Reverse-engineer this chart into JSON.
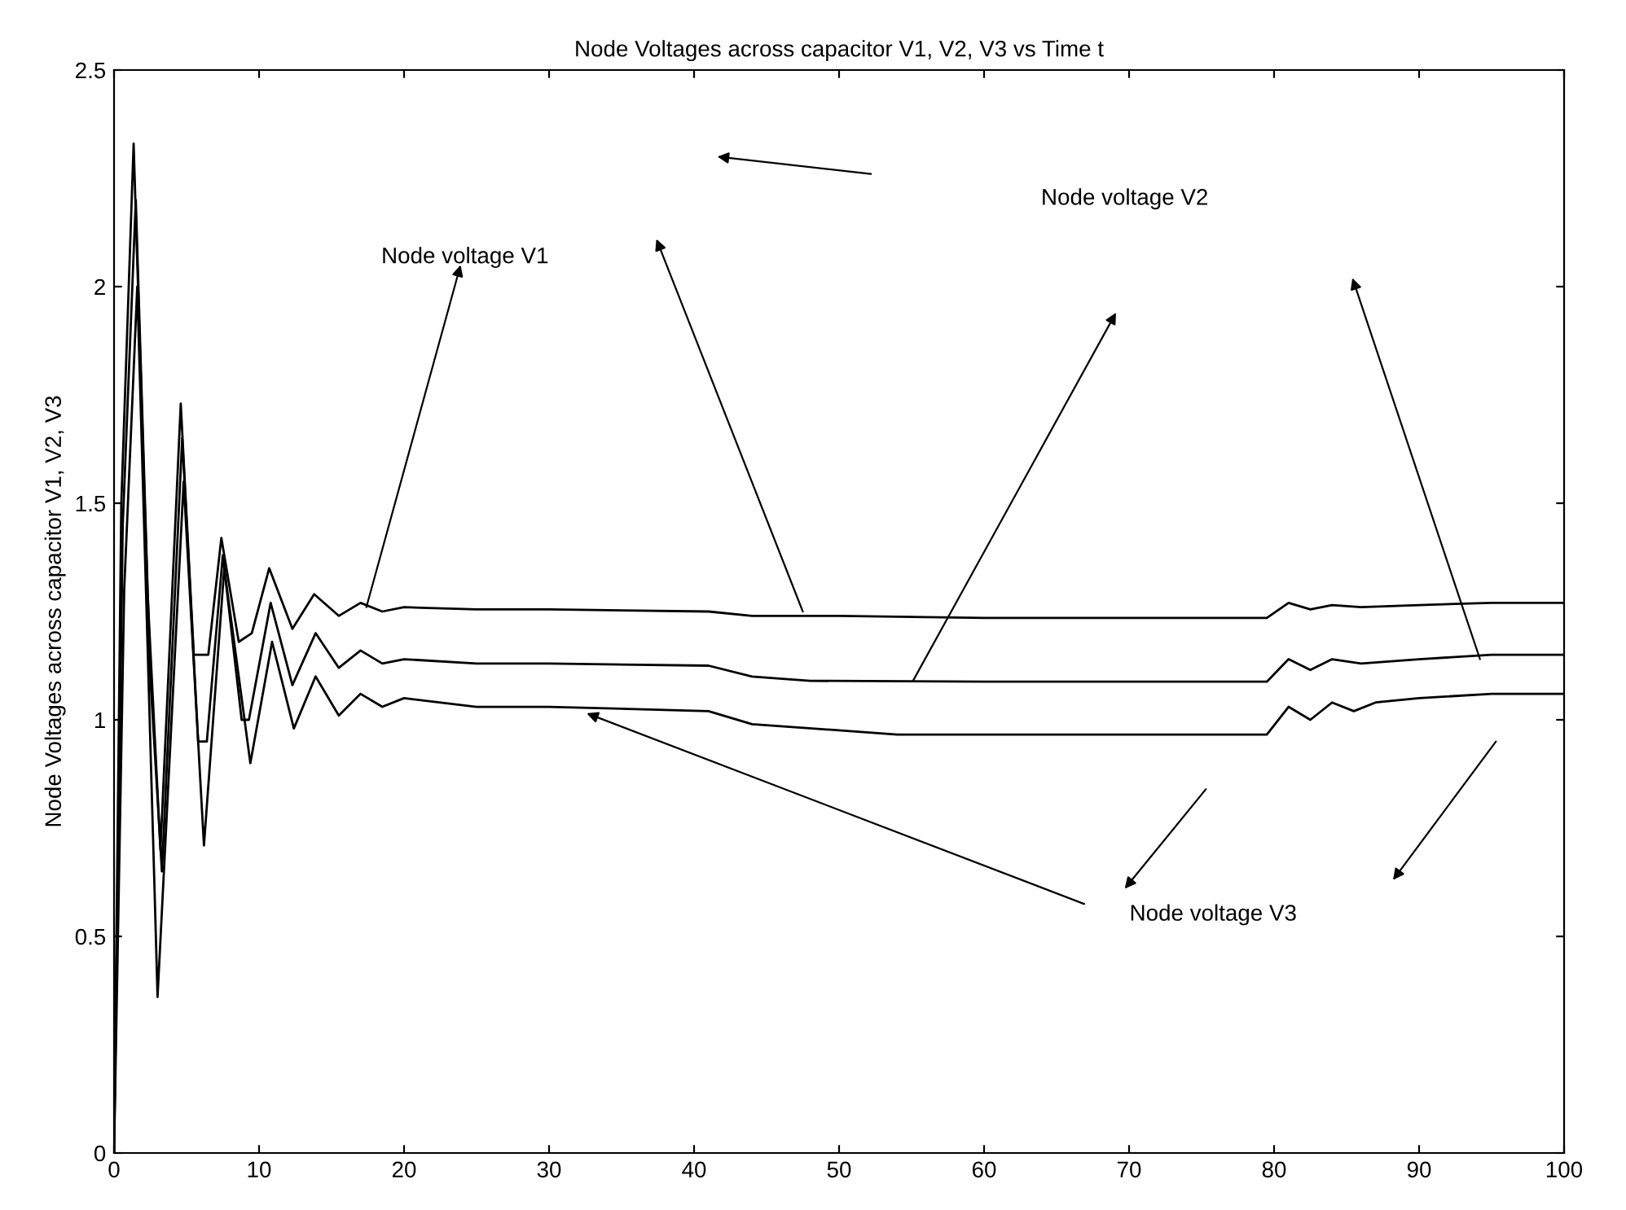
{
  "chart_data": {
    "type": "line",
    "title": "Node Voltages across capacitor V1, V2, V3 vs Time t",
    "ylabel": "Node Voltages across capacitor V1, V2, V3",
    "xlim": [
      0,
      100
    ],
    "ylim": [
      0,
      2.5
    ],
    "xticks": [
      0,
      10,
      20,
      30,
      40,
      50,
      60,
      70,
      80,
      90,
      100
    ],
    "yticks": [
      0,
      0.5,
      1,
      1.5,
      2,
      2.5
    ],
    "grid": false,
    "legend": false,
    "line_style": "solid",
    "marker": "none",
    "series": [
      {
        "color": "#000000",
        "x": [
          0,
          0.5,
          1.35,
          2.3,
          3.2,
          4.6,
          5.5,
          6.5,
          7.4,
          8.6,
          9.5,
          10.7,
          12.3,
          13.8,
          15.5,
          17,
          18.5,
          20,
          25,
          30,
          41,
          44,
          50,
          60,
          70,
          79.5,
          81,
          82.5,
          84,
          86,
          90,
          95,
          100
        ],
        "values": [
          0,
          1.5,
          2.33,
          1.3,
          0.7,
          1.73,
          1.15,
          1.15,
          1.42,
          1.18,
          1.2,
          1.35,
          1.21,
          1.29,
          1.24,
          1.27,
          1.25,
          1.26,
          1.255,
          1.255,
          1.25,
          1.24,
          1.24,
          1.235,
          1.235,
          1.235,
          1.27,
          1.255,
          1.265,
          1.26,
          1.265,
          1.27,
          1.27
        ]
      },
      {
        "color": "#000000",
        "x": [
          0,
          0.6,
          1.5,
          2.5,
          3.3,
          4.7,
          5.8,
          6.4,
          7.5,
          8.8,
          9.3,
          10.8,
          12.3,
          13.9,
          15.5,
          17,
          18.5,
          20,
          25,
          30,
          41,
          44,
          48,
          60,
          70,
          79.5,
          81,
          82.5,
          84,
          86,
          90,
          95,
          100
        ],
        "values": [
          0,
          1.45,
          2.2,
          1.1,
          0.65,
          1.65,
          0.95,
          0.95,
          1.38,
          1.0,
          1.0,
          1.27,
          1.08,
          1.2,
          1.12,
          1.16,
          1.13,
          1.14,
          1.13,
          1.13,
          1.125,
          1.1,
          1.09,
          1.088,
          1.088,
          1.088,
          1.14,
          1.115,
          1.14,
          1.13,
          1.14,
          1.15,
          1.15
        ]
      },
      {
        "color": "#000000",
        "x": [
          0,
          0.7,
          1.6,
          2.8,
          3.0,
          4.8,
          6.2,
          7.6,
          9.4,
          10.9,
          12.4,
          13.9,
          15.5,
          17,
          18.5,
          20,
          25,
          30,
          41,
          44,
          54,
          70,
          79.5,
          81,
          82.5,
          84,
          85.5,
          87,
          90,
          95,
          100
        ],
        "values": [
          0,
          1.3,
          2.0,
          0.6,
          0.36,
          1.55,
          0.71,
          1.35,
          0.9,
          1.18,
          0.98,
          1.1,
          1.01,
          1.06,
          1.03,
          1.05,
          1.03,
          1.03,
          1.02,
          0.99,
          0.966,
          0.966,
          0.966,
          1.03,
          1.0,
          1.04,
          1.02,
          1.04,
          1.05,
          1.06,
          1.06
        ]
      }
    ],
    "annotations": [
      "Node voltage V1",
      "Node voltage V2",
      "Node voltage V3"
    ]
  }
}
